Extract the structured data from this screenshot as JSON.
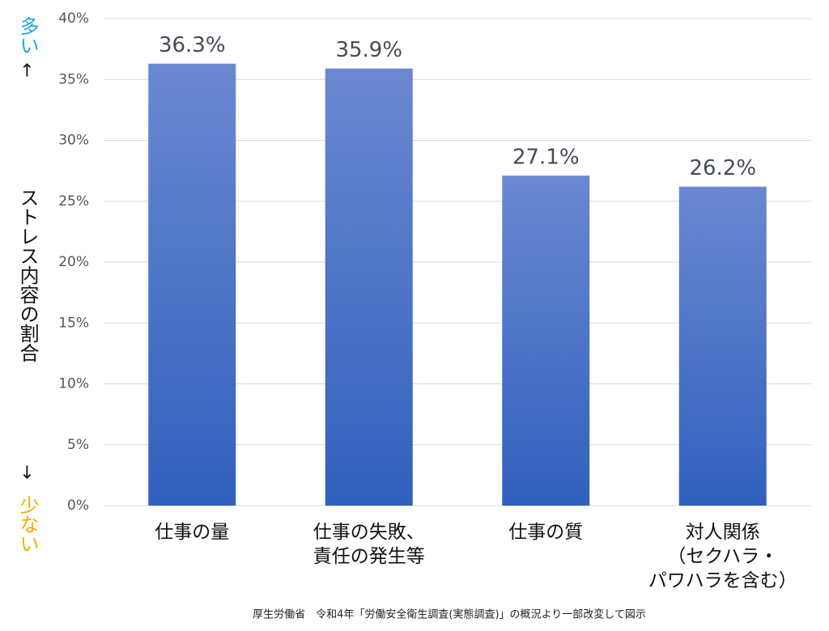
{
  "chart_data": {
    "type": "bar",
    "y_label": "ストレス内容の割合",
    "annotations": {
      "top_word": "多い",
      "top_arrow": "↑",
      "bottom_arrow": "↓",
      "bottom_word": "少ない"
    },
    "annotation_colors": {
      "top": "#1fa3dc",
      "bottom": "#f2ac00"
    },
    "source": "厚生労働省　令和4年「労働安全衛生調査(実態調査)」の概況より一部改変して図示",
    "categories": [
      "仕事の量",
      "仕事の失敗、\n責任の発生等",
      "仕事の質",
      "対人関係\n（セクハラ・\nパワハラを含む）"
    ],
    "values": [
      36.3,
      35.9,
      27.1,
      26.2
    ],
    "value_labels": [
      "36.3%",
      "35.9%",
      "27.1%",
      "26.2%"
    ],
    "gradient": [
      "#6b88d0",
      "#3060be"
    ],
    "ylim": [
      0,
      40
    ],
    "yticks": [
      {
        "value": 0,
        "label": "0%"
      },
      {
        "value": 5,
        "label": "5%"
      },
      {
        "value": 10,
        "label": "10%"
      },
      {
        "value": 15,
        "label": "15%"
      },
      {
        "value": 20,
        "label": "20%"
      },
      {
        "value": 25,
        "label": "25%"
      },
      {
        "value": 30,
        "label": "30%"
      },
      {
        "value": 35,
        "label": "35%"
      },
      {
        "value": 40,
        "label": "40%"
      }
    ],
    "grid": true
  }
}
